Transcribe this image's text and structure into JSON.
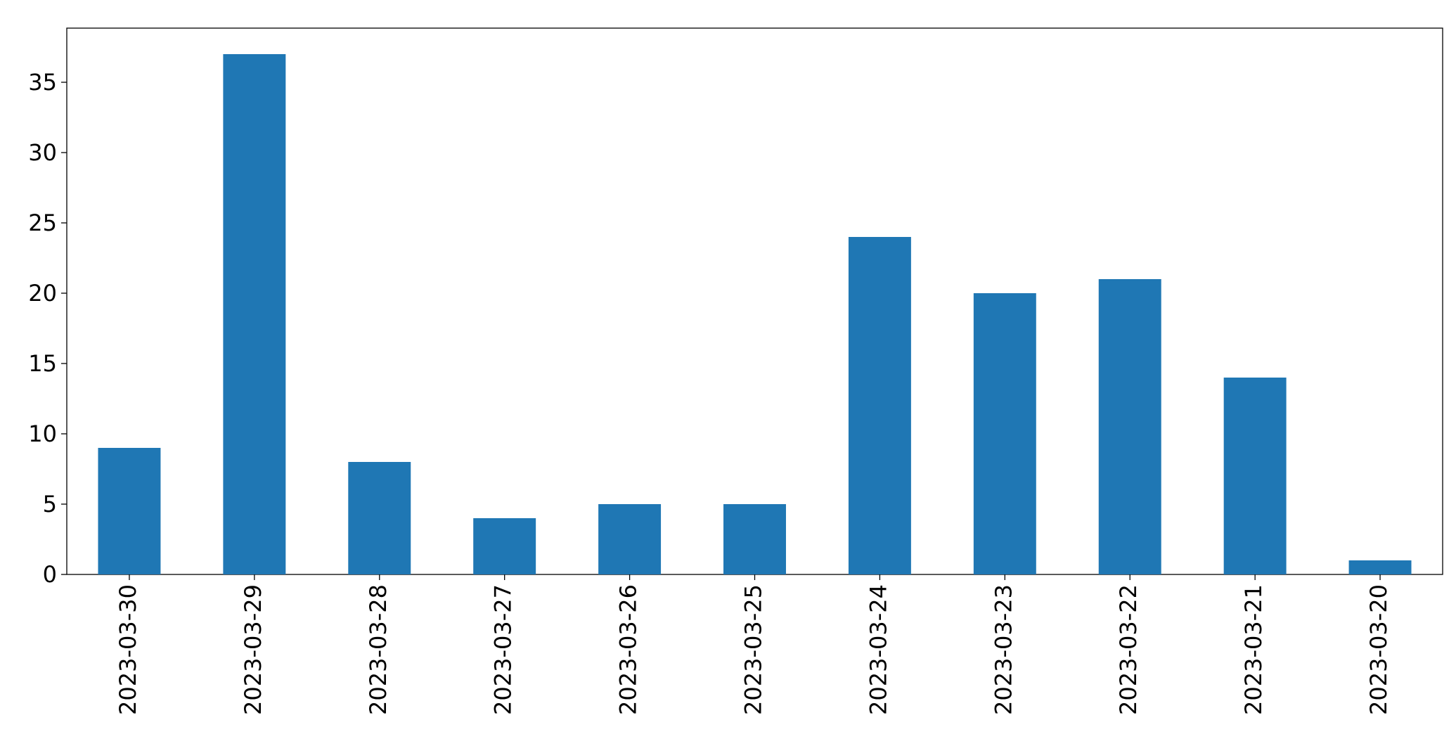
{
  "chart_data": {
    "type": "bar",
    "categories": [
      "2023-03-30",
      "2023-03-29",
      "2023-03-28",
      "2023-03-27",
      "2023-03-26",
      "2023-03-25",
      "2023-03-24",
      "2023-03-23",
      "2023-03-22",
      "2023-03-21",
      "2023-03-20"
    ],
    "values": [
      9,
      37,
      8,
      4,
      5,
      5,
      24,
      20,
      21,
      14,
      1
    ],
    "color": "#1f77b4",
    "ylim": [
      0,
      38.85
    ],
    "yticks": [
      0,
      5,
      10,
      15,
      20,
      25,
      30,
      35
    ],
    "grid": false
  }
}
